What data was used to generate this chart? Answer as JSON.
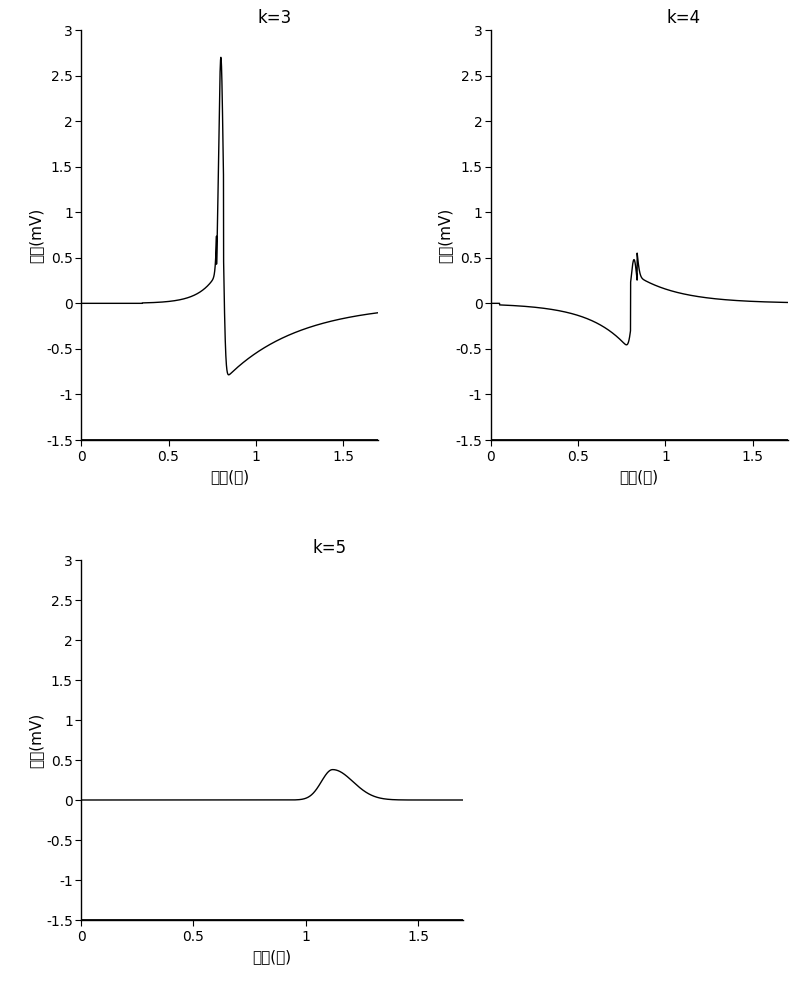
{
  "plots": [
    {
      "k": 3,
      "title": "k=3",
      "peak_time": 0.8,
      "peak_amplitude": 2.7,
      "neg_amplitude": -0.85,
      "xlim": [
        0,
        1.7
      ],
      "ylim": [
        -1.5,
        3.0
      ],
      "yticks": [
        -1.5,
        -1.0,
        -0.5,
        0,
        0.5,
        1.0,
        1.5,
        2.0,
        2.5,
        3.0
      ],
      "ytick_labels": [
        "-1.5",
        "-1",
        "-0.5",
        "0",
        "0.5",
        "1",
        "1.5",
        "2",
        "2.5",
        "3"
      ]
    },
    {
      "k": 4,
      "title": "k=4",
      "peak_time": 0.82,
      "peak_amplitude": 0.48,
      "neg_amplitude": -0.52,
      "xlim": [
        0,
        1.7
      ],
      "ylim": [
        -1.5,
        3.0
      ],
      "yticks": [
        -1.5,
        -1.0,
        -0.5,
        0,
        0.5,
        1.0,
        1.5,
        2.0,
        2.5,
        3.0
      ],
      "ytick_labels": [
        "-1.5",
        "-1",
        "-0.5",
        "0",
        "0.5",
        "1",
        "1.5",
        "2",
        "2.5",
        "3"
      ]
    },
    {
      "k": 5,
      "title": "k=5",
      "peak_time": 1.12,
      "peak_amplitude": 0.38,
      "neg_amplitude": 0.0,
      "xlim": [
        0,
        1.7
      ],
      "ylim": [
        -1.5,
        3.0
      ],
      "yticks": [
        -1.5,
        -1.0,
        -0.5,
        0,
        0.5,
        1.0,
        1.5,
        2.0,
        2.5,
        3.0
      ],
      "ytick_labels": [
        "-1.5",
        "-1",
        "-0.5",
        "0",
        "0.5",
        "1",
        "1.5",
        "2",
        "2.5",
        "3"
      ]
    }
  ],
  "xlabel": "时间(秒)",
  "ylabel": "电压(mV)",
  "line_color": "black",
  "bg_color": "white",
  "xticks": [
    0,
    0.5,
    1.0,
    1.5
  ],
  "xtick_labels": [
    "0",
    "0.5",
    "1",
    "1.5"
  ]
}
